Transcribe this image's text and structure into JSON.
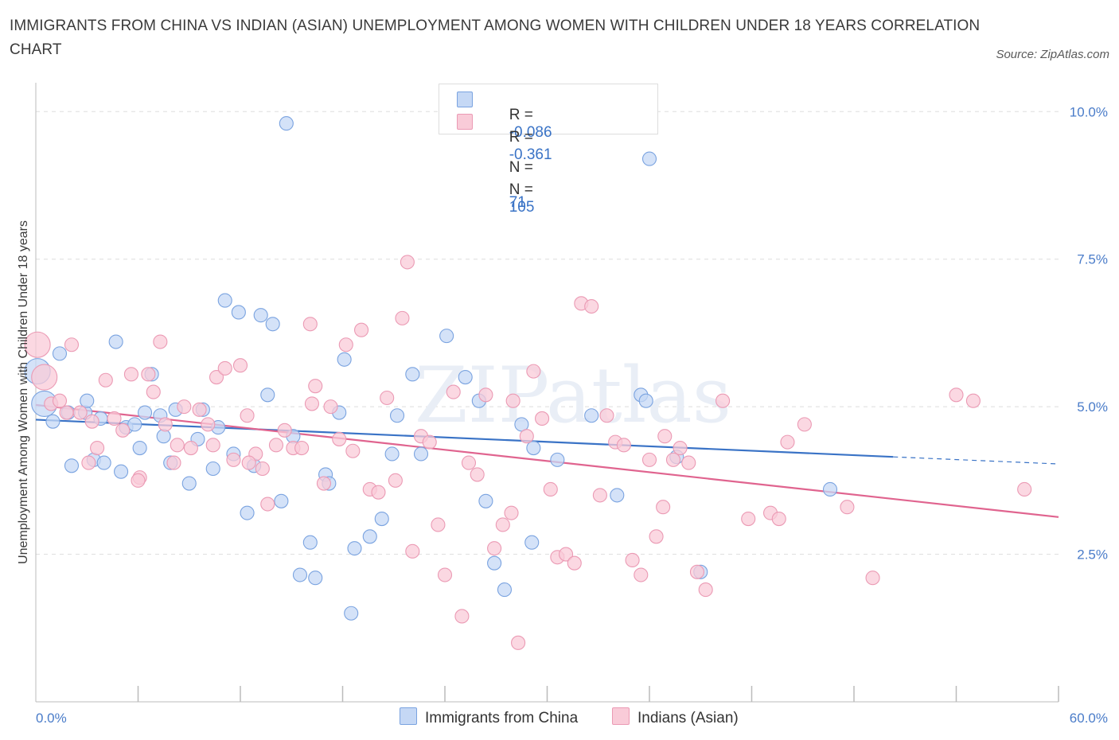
{
  "title": "IMMIGRANTS FROM CHINA VS INDIAN (ASIAN) UNEMPLOYMENT AMONG WOMEN WITH CHILDREN UNDER 18 YEARS CORRELATION CHART",
  "source": "Source: ZipAtlas.com",
  "watermark": "ZIPatlas",
  "legend": {
    "rows": [
      {
        "r_label": "R =",
        "r_value": "-0.086",
        "n_label": "N =",
        "n_value": "71"
      },
      {
        "r_label": "R =",
        "r_value": "-0.361",
        "n_label": "N =",
        "n_value": "105"
      }
    ]
  },
  "bottom_legend": [
    "Immigrants from China",
    "Indians (Asian)"
  ],
  "colors": {
    "china_fill": "#c5d8f5",
    "china_stroke": "#7aa3e0",
    "china_line": "#3a73c6",
    "indian_fill": "#f9cbd8",
    "indian_stroke": "#eb9ab4",
    "indian_line": "#e0648f",
    "axis_text": "#4a7cc9",
    "grid": "#dddddd"
  },
  "chart_data": {
    "type": "scatter",
    "ylabel": "Unemployment Among Women with Children Under 18 years",
    "xlim": [
      0,
      60
    ],
    "ylim": [
      0,
      10.3
    ],
    "x_tick_labels": [
      "0.0%",
      "60.0%"
    ],
    "y_ticks": [
      2.5,
      5.0,
      7.5,
      10.0
    ],
    "y_tick_labels": [
      "2.5%",
      "5.0%",
      "7.5%",
      "10.0%"
    ],
    "grid": "horizontal dashed",
    "series": [
      {
        "name": "Immigrants from China",
        "points": [
          [
            0.1,
            5.6
          ],
          [
            0.5,
            5.05
          ],
          [
            1.0,
            4.75
          ],
          [
            1.4,
            5.9
          ],
          [
            1.9,
            4.9
          ],
          [
            2.9,
            4.9
          ],
          [
            2.1,
            4.0
          ],
          [
            3.0,
            5.1
          ],
          [
            3.4,
            4.1
          ],
          [
            4.0,
            4.05
          ],
          [
            3.8,
            4.8
          ],
          [
            4.7,
            6.1
          ],
          [
            5.0,
            3.9
          ],
          [
            5.3,
            4.65
          ],
          [
            5.8,
            4.7
          ],
          [
            6.1,
            4.3
          ],
          [
            6.4,
            4.9
          ],
          [
            6.8,
            5.55
          ],
          [
            7.3,
            4.85
          ],
          [
            7.5,
            4.5
          ],
          [
            7.9,
            4.05
          ],
          [
            8.2,
            4.95
          ],
          [
            9.0,
            3.7
          ],
          [
            9.5,
            4.45
          ],
          [
            9.8,
            4.95
          ],
          [
            10.4,
            3.95
          ],
          [
            10.7,
            4.65
          ],
          [
            11.1,
            6.8
          ],
          [
            11.6,
            4.2
          ],
          [
            11.9,
            6.6
          ],
          [
            12.4,
            3.2
          ],
          [
            12.8,
            4.0
          ],
          [
            13.2,
            6.55
          ],
          [
            13.6,
            5.2
          ],
          [
            13.9,
            6.4
          ],
          [
            14.4,
            3.4
          ],
          [
            14.7,
            9.8
          ],
          [
            15.1,
            4.5
          ],
          [
            15.5,
            2.15
          ],
          [
            16.1,
            2.7
          ],
          [
            16.4,
            2.1
          ],
          [
            17.0,
            3.85
          ],
          [
            18.1,
            5.8
          ],
          [
            17.8,
            4.9
          ],
          [
            17.2,
            3.7
          ],
          [
            18.7,
            2.6
          ],
          [
            19.6,
            2.8
          ],
          [
            20.3,
            3.1
          ],
          [
            20.9,
            4.2
          ],
          [
            21.2,
            4.85
          ],
          [
            22.1,
            5.55
          ],
          [
            22.6,
            4.2
          ],
          [
            24.1,
            6.2
          ],
          [
            25.2,
            5.5
          ],
          [
            26.0,
            5.1
          ],
          [
            26.4,
            3.4
          ],
          [
            26.9,
            2.35
          ],
          [
            27.5,
            1.9
          ],
          [
            28.5,
            4.7
          ],
          [
            29.1,
            2.7
          ],
          [
            29.2,
            4.3
          ],
          [
            30.6,
            4.1
          ],
          [
            32.6,
            4.85
          ],
          [
            34.1,
            3.5
          ],
          [
            35.5,
            5.2
          ],
          [
            35.8,
            5.1
          ],
          [
            36.0,
            9.2
          ],
          [
            37.6,
            4.15
          ],
          [
            39.0,
            2.2
          ],
          [
            18.5,
            1.5
          ],
          [
            46.6,
            3.6
          ]
        ],
        "sizes_large": [
          [
            0.1,
            5.6
          ],
          [
            0.5,
            5.05
          ]
        ]
      },
      {
        "name": "Indians (Asian)",
        "points": [
          [
            0.1,
            6.05
          ],
          [
            0.5,
            5.5
          ],
          [
            0.9,
            5.05
          ],
          [
            1.4,
            5.1
          ],
          [
            2.1,
            6.05
          ],
          [
            2.6,
            4.9
          ],
          [
            3.1,
            4.05
          ],
          [
            3.6,
            4.3
          ],
          [
            4.1,
            5.45
          ],
          [
            4.6,
            4.8
          ],
          [
            5.1,
            4.6
          ],
          [
            5.6,
            5.55
          ],
          [
            6.1,
            3.8
          ],
          [
            6.6,
            5.55
          ],
          [
            6.9,
            5.25
          ],
          [
            7.3,
            6.1
          ],
          [
            7.6,
            4.7
          ],
          [
            8.1,
            4.05
          ],
          [
            8.3,
            4.35
          ],
          [
            8.7,
            5.0
          ],
          [
            9.1,
            4.3
          ],
          [
            9.6,
            4.95
          ],
          [
            10.1,
            4.7
          ],
          [
            10.6,
            5.5
          ],
          [
            11.1,
            5.65
          ],
          [
            11.6,
            4.1
          ],
          [
            12.0,
            5.7
          ],
          [
            12.4,
            4.85
          ],
          [
            12.9,
            4.2
          ],
          [
            13.3,
            3.95
          ],
          [
            13.6,
            3.35
          ],
          [
            14.1,
            4.35
          ],
          [
            14.6,
            4.6
          ],
          [
            15.1,
            4.3
          ],
          [
            15.6,
            4.3
          ],
          [
            16.1,
            6.4
          ],
          [
            16.4,
            5.35
          ],
          [
            16.9,
            3.7
          ],
          [
            17.3,
            5.0
          ],
          [
            17.8,
            4.45
          ],
          [
            18.2,
            6.05
          ],
          [
            18.6,
            4.25
          ],
          [
            19.1,
            6.3
          ],
          [
            19.6,
            3.6
          ],
          [
            20.1,
            3.55
          ],
          [
            20.6,
            5.15
          ],
          [
            21.1,
            3.75
          ],
          [
            21.5,
            6.5
          ],
          [
            22.1,
            2.55
          ],
          [
            22.6,
            4.5
          ],
          [
            23.1,
            4.4
          ],
          [
            23.6,
            3.0
          ],
          [
            24.0,
            2.15
          ],
          [
            24.5,
            5.25
          ],
          [
            25.0,
            1.45
          ],
          [
            25.4,
            4.05
          ],
          [
            25.9,
            3.85
          ],
          [
            26.4,
            5.2
          ],
          [
            26.9,
            2.6
          ],
          [
            27.4,
            3.0
          ],
          [
            27.9,
            3.2
          ],
          [
            28.3,
            1.0
          ],
          [
            28.8,
            4.5
          ],
          [
            29.2,
            5.6
          ],
          [
            29.7,
            4.8
          ],
          [
            30.2,
            3.6
          ],
          [
            30.6,
            2.45
          ],
          [
            31.1,
            2.5
          ],
          [
            31.6,
            2.35
          ],
          [
            32.0,
            6.75
          ],
          [
            32.6,
            6.7
          ],
          [
            33.1,
            3.5
          ],
          [
            33.5,
            4.85
          ],
          [
            34.0,
            4.4
          ],
          [
            34.5,
            4.35
          ],
          [
            35.0,
            2.4
          ],
          [
            35.5,
            2.15
          ],
          [
            36.0,
            4.1
          ],
          [
            36.4,
            2.8
          ],
          [
            36.9,
            4.5
          ],
          [
            37.4,
            4.1
          ],
          [
            37.8,
            4.3
          ],
          [
            38.3,
            4.05
          ],
          [
            38.8,
            2.2
          ],
          [
            39.3,
            1.9
          ],
          [
            40.3,
            5.1
          ],
          [
            41.8,
            3.1
          ],
          [
            43.1,
            3.2
          ],
          [
            43.6,
            3.1
          ],
          [
            44.1,
            4.4
          ],
          [
            45.1,
            4.7
          ],
          [
            47.6,
            3.3
          ],
          [
            49.1,
            2.1
          ],
          [
            54.0,
            5.2
          ],
          [
            55.0,
            5.1
          ],
          [
            58.0,
            3.6
          ],
          [
            21.8,
            7.45
          ],
          [
            10.4,
            4.35
          ],
          [
            12.5,
            4.05
          ],
          [
            6.0,
            3.75
          ],
          [
            3.3,
            4.75
          ],
          [
            1.8,
            4.9
          ],
          [
            16.2,
            5.05
          ],
          [
            28.0,
            5.1
          ],
          [
            36.8,
            3.3
          ]
        ],
        "sizes_large": [
          [
            0.1,
            6.05
          ],
          [
            0.5,
            5.5
          ]
        ]
      }
    ],
    "trend_lines": [
      {
        "series": "Immigrants from China",
        "x": [
          0,
          50.3
        ],
        "y": [
          4.78,
          4.15
        ],
        "dashed_extension": {
          "x": [
            50.3,
            60
          ],
          "y": [
            4.15,
            4.03
          ]
        }
      },
      {
        "series": "Indians (Asian)",
        "x": [
          0,
          60
        ],
        "y": [
          5.03,
          3.13
        ]
      }
    ]
  }
}
